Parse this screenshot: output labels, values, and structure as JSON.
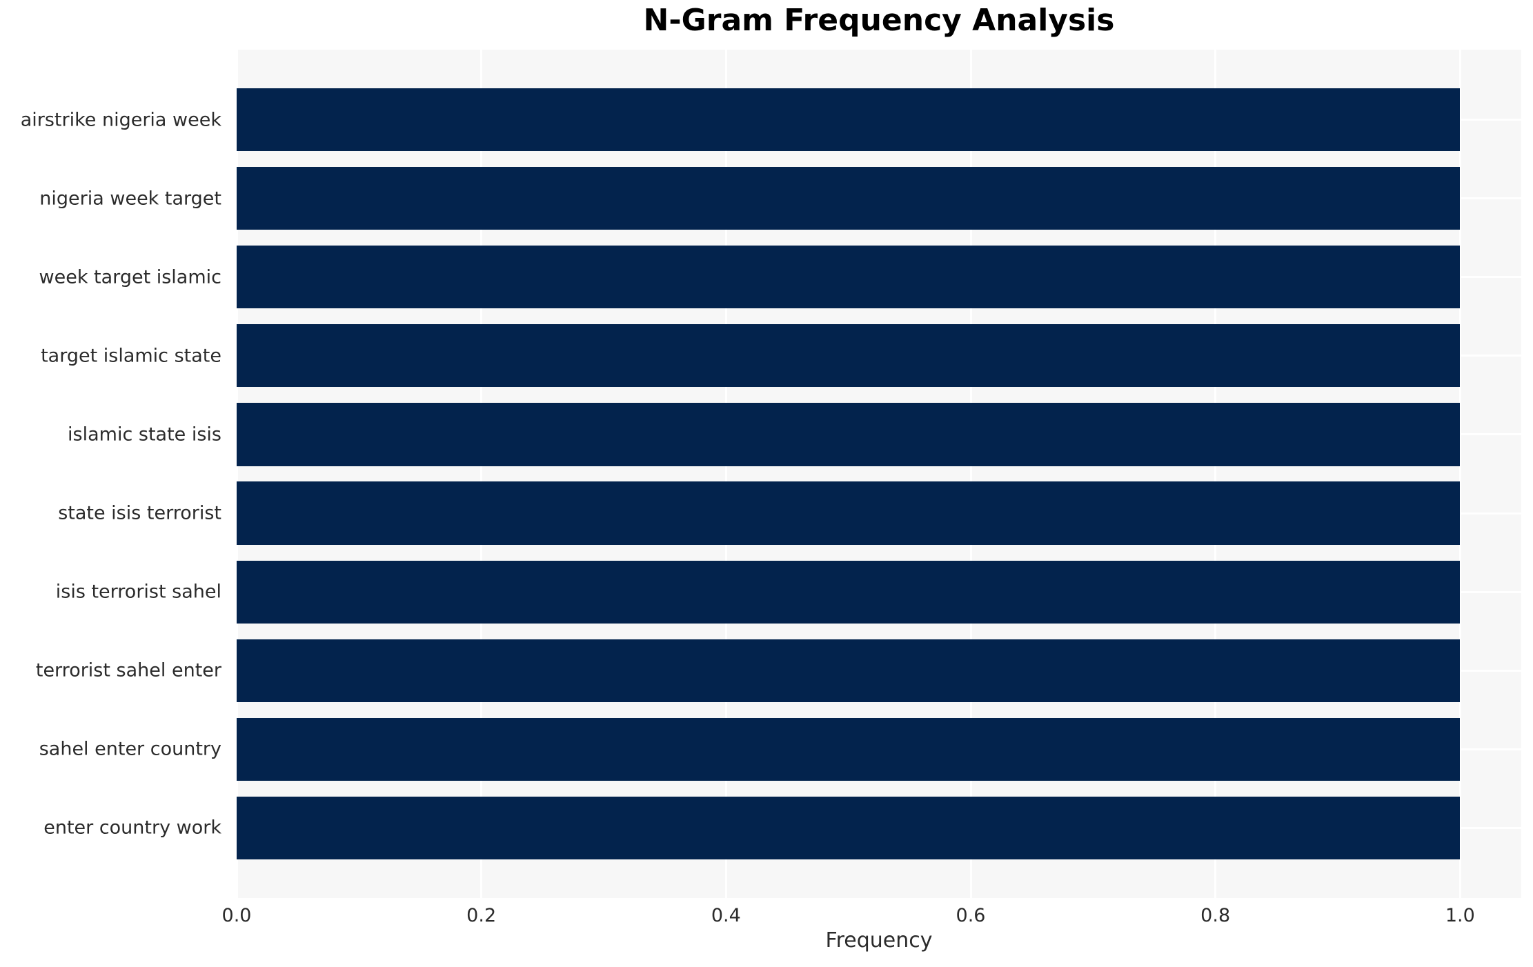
{
  "chart_data": {
    "type": "bar",
    "orientation": "horizontal",
    "title": "N-Gram Frequency Analysis",
    "xlabel": "Frequency",
    "ylabel": "",
    "categories": [
      "airstrike nigeria week",
      "nigeria week target",
      "week target islamic",
      "target islamic state",
      "islamic state isis",
      "state isis terrorist",
      "isis terrorist sahel",
      "terrorist sahel enter",
      "sahel enter country",
      "enter country work"
    ],
    "values": [
      1.0,
      1.0,
      1.0,
      1.0,
      1.0,
      1.0,
      1.0,
      1.0,
      1.0,
      1.0
    ],
    "xticks": [
      0.0,
      0.2,
      0.4,
      0.6,
      0.8,
      1.0
    ],
    "xtick_labels": [
      "0.0",
      "0.2",
      "0.4",
      "0.6",
      "0.8",
      "1.0"
    ],
    "xlim": [
      0,
      1.05
    ],
    "grid": true,
    "grid_color": "#ffffff",
    "legend": false,
    "bar_color": "#03234d",
    "plot_background": "#f7f7f7",
    "figure_background": "#ffffff",
    "tick_text_color": "#2b2b2b",
    "title_color": "#000000"
  }
}
